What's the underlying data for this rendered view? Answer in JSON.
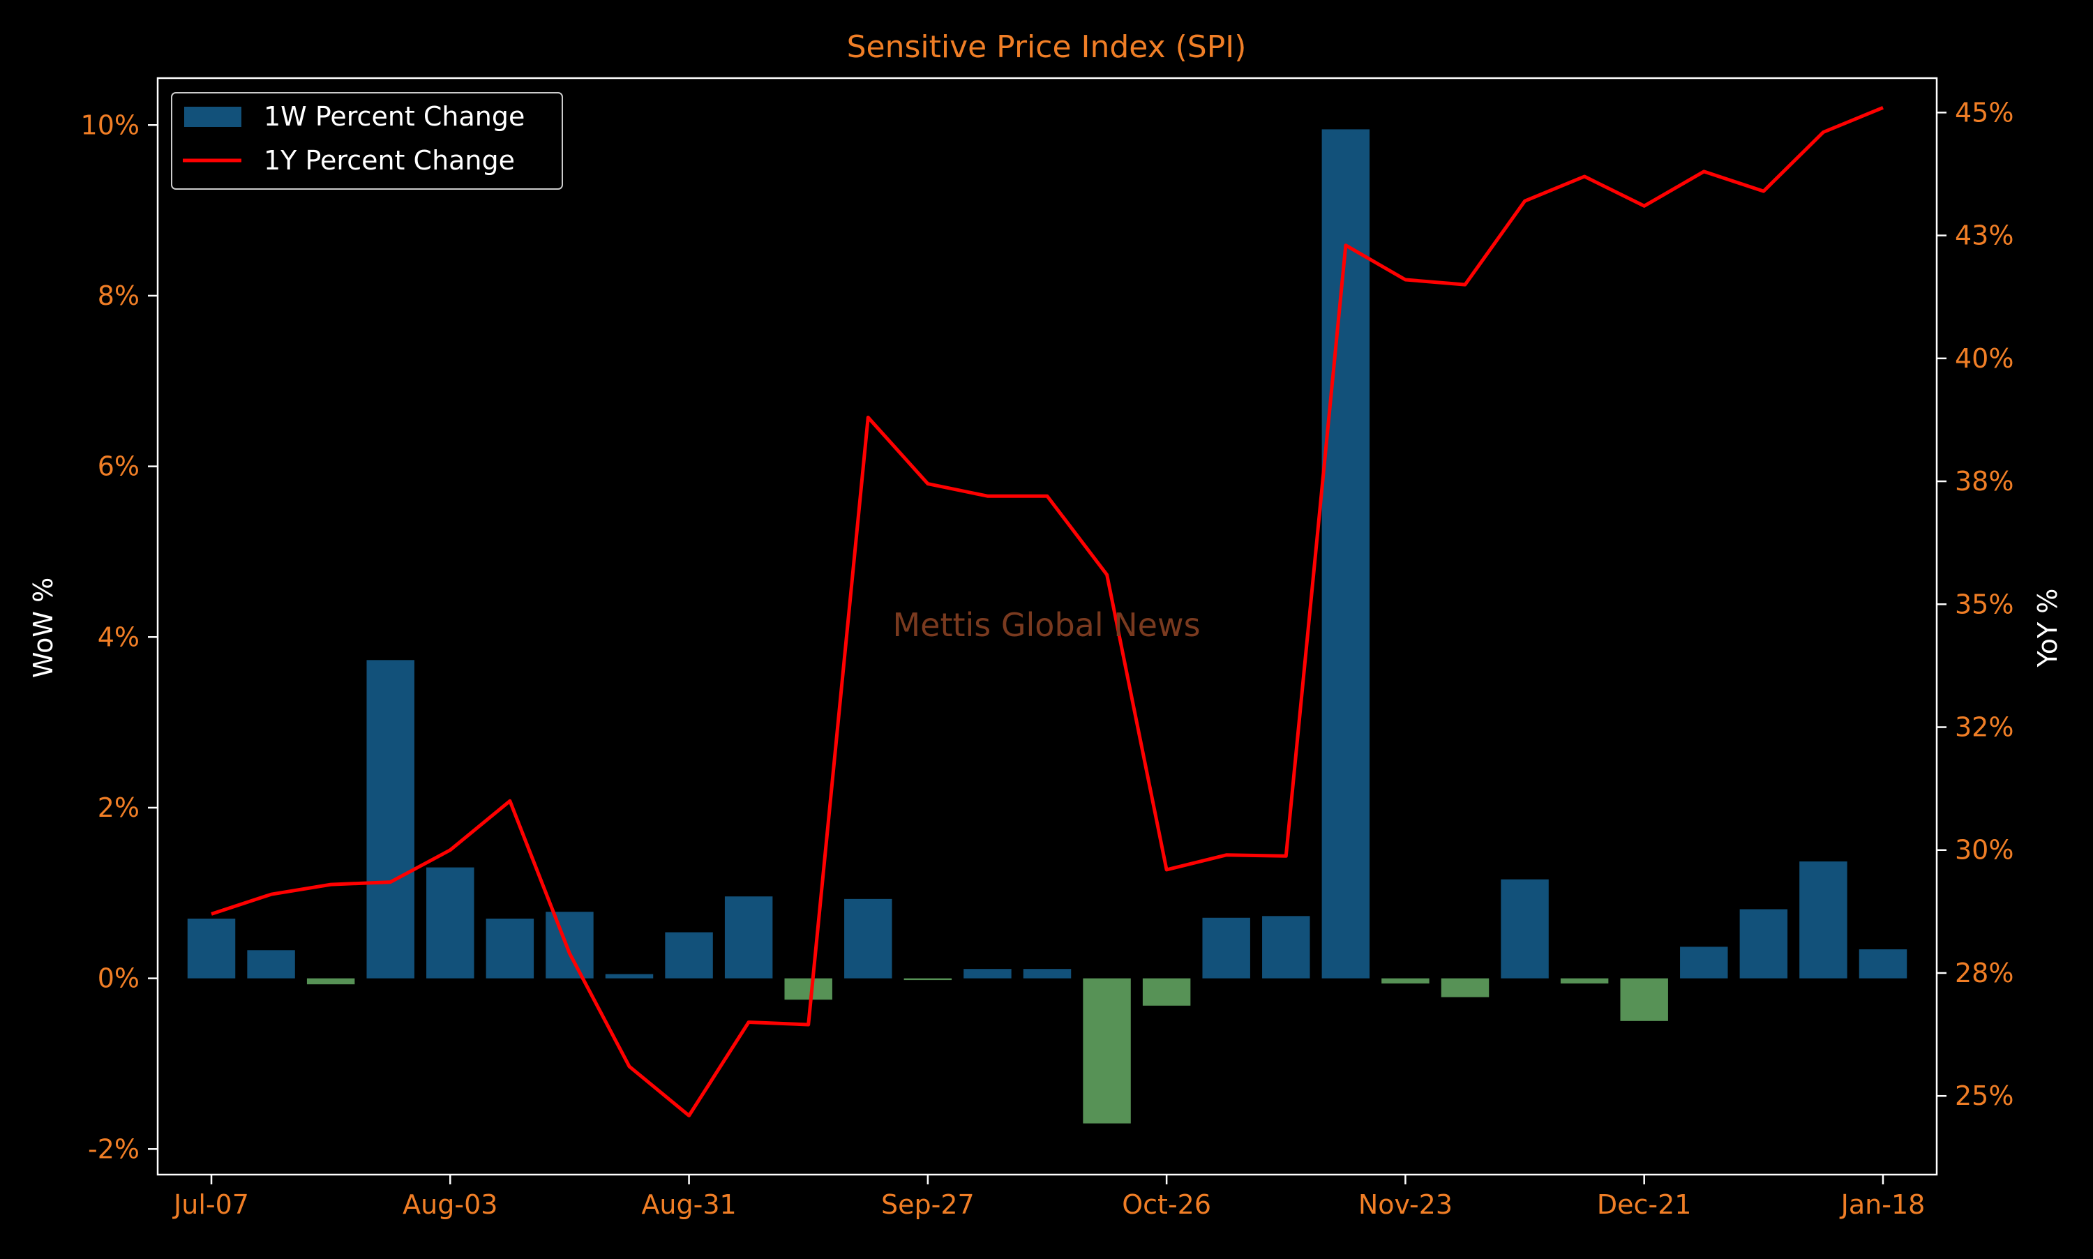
{
  "chart_data": {
    "type": "bar+line",
    "title": "Sensitive Price Index (SPI)",
    "y_left_label": "WoW %",
    "y_right_label": "YoY %",
    "watermark": "Mettis Global News",
    "legend": {
      "placement": "upper-left",
      "entries": [
        "1W Percent Change",
        "1Y Percent Change"
      ]
    },
    "x_tick_labels": [
      "Jul-07",
      "Aug-03",
      "Aug-31",
      "Sep-27",
      "Oct-26",
      "Nov-23",
      "Dec-21",
      "Jan-18"
    ],
    "x_tick_positions": [
      0,
      4,
      8,
      12,
      16,
      20,
      24,
      28
    ],
    "y_left": {
      "ylim": [
        -2.3,
        10.55
      ],
      "ticks": [
        -2,
        0,
        2,
        4,
        6,
        8,
        10
      ],
      "tick_labels": [
        "-2%",
        "0%",
        "2%",
        "4%",
        "6%",
        "8%",
        "10%"
      ]
    },
    "y_right": {
      "ylim": [
        23.4,
        45.7
      ],
      "ticks": [
        25,
        27.5,
        30,
        32.5,
        35,
        37.5,
        40,
        42.5,
        45
      ],
      "tick_labels": [
        "25%",
        "28%",
        "30%",
        "32%",
        "35%",
        "38%",
        "40%",
        "43%",
        "45%"
      ]
    },
    "series": [
      {
        "name": "1W Percent Change",
        "kind": "bar",
        "positive_color": "#12517a",
        "negative_color": "#579256",
        "values": [
          0.7,
          0.33,
          -0.07,
          3.73,
          1.3,
          0.7,
          0.78,
          0.05,
          0.54,
          0.96,
          -0.25,
          0.93,
          -0.02,
          0.11,
          0.11,
          -1.7,
          -0.32,
          0.71,
          0.73,
          9.95,
          -0.06,
          -0.22,
          1.16,
          -0.06,
          -0.5,
          0.37,
          0.81,
          1.37,
          0.34
        ]
      },
      {
        "name": "1Y Percent Change",
        "kind": "line",
        "axis": "right",
        "color": "#ff0000",
        "values": [
          28.7,
          29.1,
          29.3,
          29.35,
          30.0,
          31.0,
          27.9,
          25.6,
          24.6,
          26.5,
          26.45,
          38.8,
          37.45,
          37.2,
          37.2,
          35.6,
          29.6,
          29.9,
          29.88,
          42.3,
          41.6,
          41.5,
          43.2,
          43.7,
          43.1,
          43.8,
          43.4,
          44.6,
          45.1
        ]
      }
    ],
    "colors": {
      "background": "#000000",
      "axis_text": "#f07e26",
      "label_text": "#ffffff",
      "spine": "#ffffff",
      "watermark": "#7a3a1f"
    }
  }
}
